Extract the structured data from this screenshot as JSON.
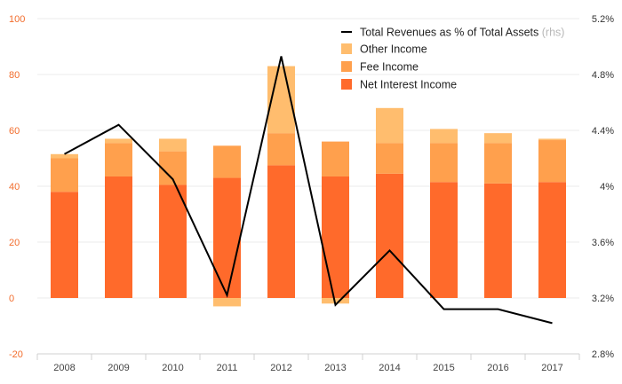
{
  "chart_data": {
    "type": "bar",
    "subtype": "stacked-bar-with-line",
    "categories": [
      "2008",
      "2009",
      "2010",
      "2011",
      "2012",
      "2013",
      "2014",
      "2015",
      "2016",
      "2017"
    ],
    "series": [
      {
        "name": "Net Interest Income",
        "type": "bar",
        "axis": "left",
        "color": "#ff6a2b",
        "values": [
          38,
          43.5,
          40.5,
          43,
          47.5,
          43.5,
          44.5,
          41.5,
          41,
          41.5
        ]
      },
      {
        "name": "Fee Income",
        "type": "bar",
        "axis": "left",
        "color": "#ffa04d",
        "values": [
          12,
          12,
          12,
          11.5,
          11.5,
          12.5,
          11,
          14,
          14.5,
          15
        ]
      },
      {
        "name": "Other Income",
        "type": "bar",
        "axis": "left",
        "color": "#ffbd6e",
        "values": [
          1.5,
          1.5,
          4.5,
          -3,
          24,
          -2,
          12.5,
          5,
          3.5,
          0.5
        ]
      },
      {
        "name": "Total Revenues as % of Total Assets",
        "name_suffix": "(rhs)",
        "type": "line",
        "axis": "right",
        "color": "#000000",
        "values": [
          4.23,
          4.44,
          4.05,
          3.22,
          4.93,
          3.15,
          3.54,
          3.12,
          3.12,
          3.02
        ]
      }
    ],
    "y_left": {
      "ylim": [
        -20,
        100
      ],
      "ticks": [
        100,
        80,
        60,
        40,
        20,
        0,
        -20
      ],
      "tick_labels": [
        "100",
        "80",
        "60",
        "40",
        "20",
        "0",
        "-20"
      ]
    },
    "y_right": {
      "ylim": [
        2.8,
        5.2
      ],
      "ticks": [
        5.2,
        4.8,
        4.4,
        4.0,
        3.6,
        3.2,
        2.8
      ],
      "tick_labels": [
        "5.2%",
        "4.8%",
        "4.4%",
        "4%",
        "3.6%",
        "3.2%",
        "2.8%"
      ]
    },
    "grid": "horizontal",
    "legend_position": "top-right",
    "title": "",
    "xlabel": "",
    "ylabel": ""
  }
}
